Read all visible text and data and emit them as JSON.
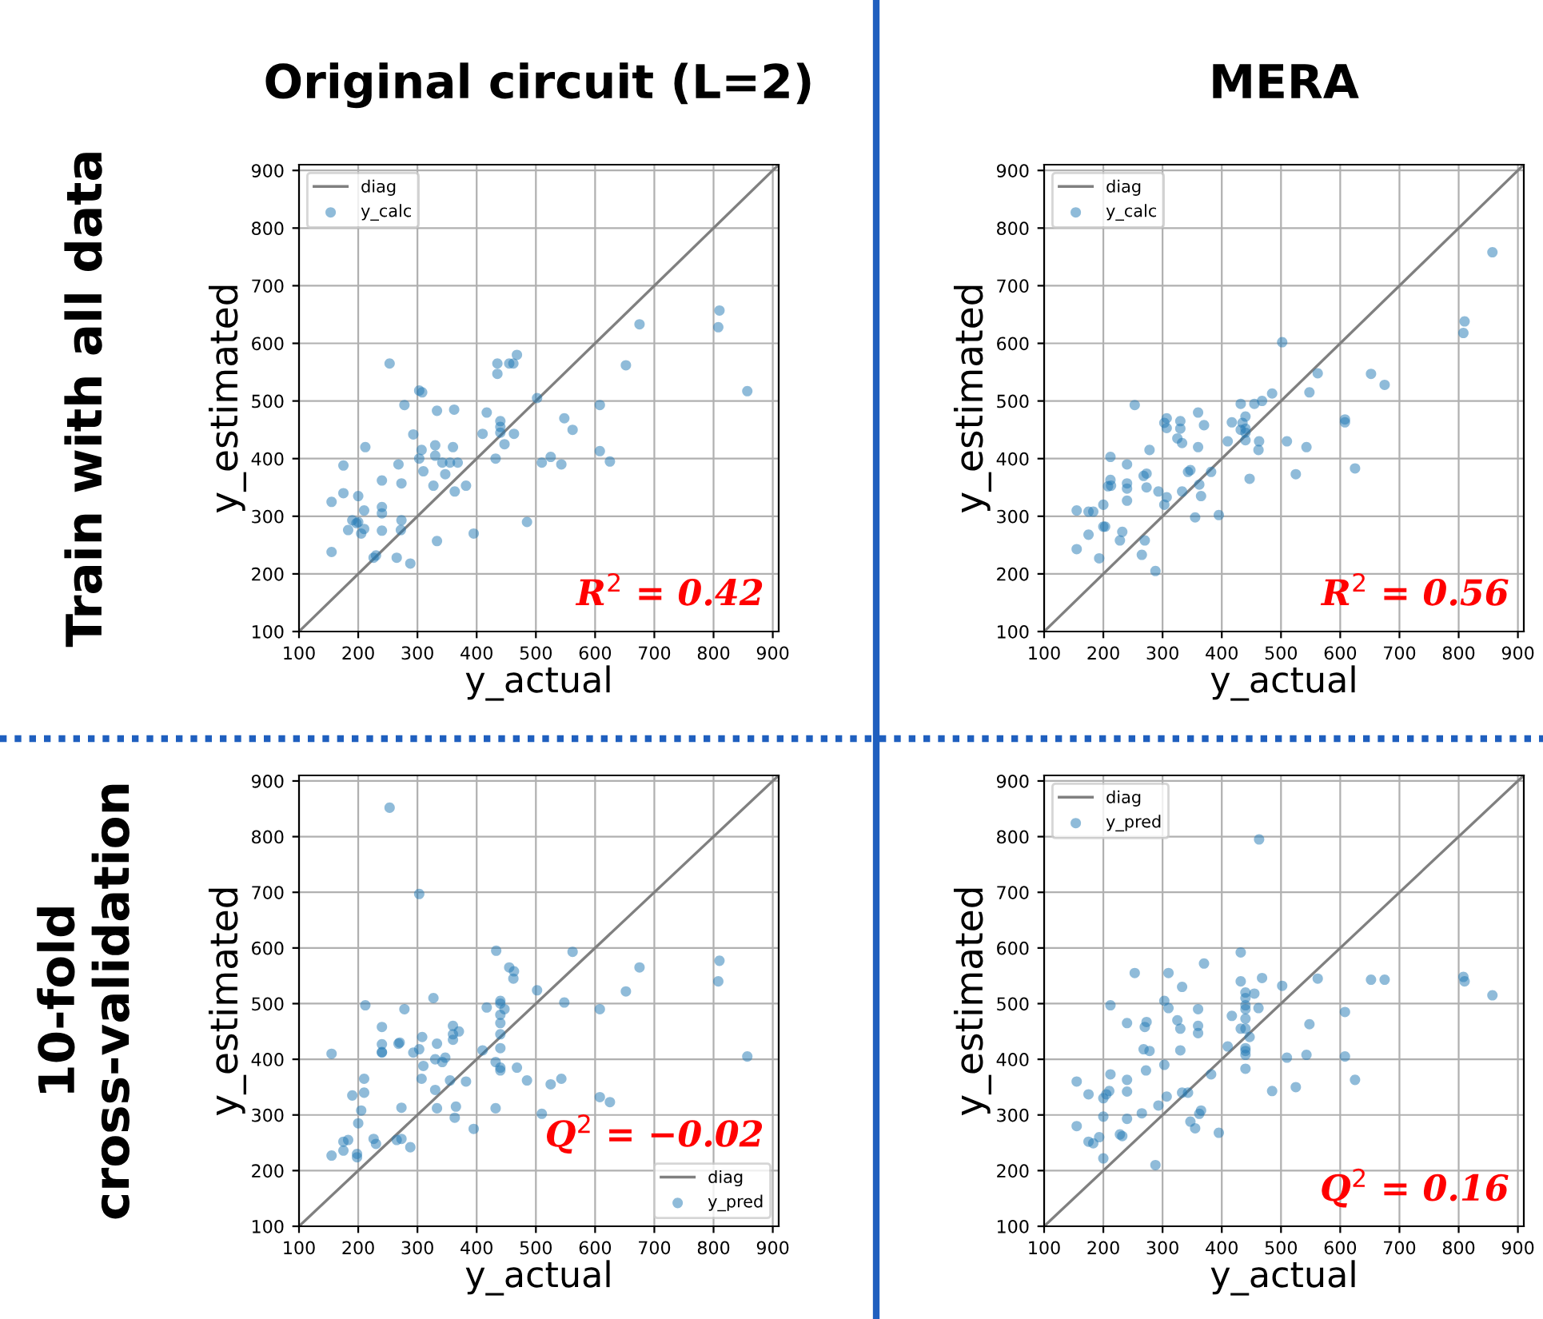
{
  "chart_data": [
    {
      "type": "scatter",
      "title": "Original circuit (L=2)",
      "xlabel": "y_actual",
      "ylabel": "y_estimated",
      "xlim": [
        100,
        910
      ],
      "ylim": [
        100,
        910
      ],
      "xticks": [
        100,
        200,
        300,
        400,
        500,
        600,
        700,
        800,
        900
      ],
      "yticks": [
        100,
        200,
        300,
        400,
        500,
        600,
        700,
        800,
        900
      ],
      "grid": true,
      "legend": "top left",
      "annotations": [
        "R$^{2}$ = 0.42",
        "Train with all data"
      ],
      "series": [
        {
          "name": "diag",
          "type": "line",
          "color": "#808080",
          "x": [
            100,
            910
          ],
          "values": [
            100,
            910
          ]
        },
        {
          "name": "y_calc",
          "marker": "circle",
          "color": "#1f77b4",
          "x": [
            155,
            155,
            175,
            175,
            183,
            190,
            197,
            200,
            200,
            205,
            210,
            210,
            212,
            226,
            230,
            240,
            240,
            240,
            240,
            265,
            268,
            272,
            273,
            273,
            253,
            278,
            288,
            293,
            303,
            303,
            308,
            307,
            310,
            327,
            330,
            330,
            333,
            333,
            342,
            347,
            355,
            360,
            362,
            363,
            368,
            382,
            395,
            410,
            417,
            432,
            435,
            435,
            440,
            440,
            440,
            447,
            455,
            462,
            463,
            468,
            485,
            502,
            510,
            525,
            543,
            548,
            562,
            608,
            608,
            625,
            652,
            675,
            808,
            810,
            857
          ],
          "values": [
            325,
            238,
            388,
            340,
            276,
            293,
            288,
            290,
            335,
            270,
            310,
            278,
            420,
            228,
            232,
            316,
            305,
            275,
            362,
            228,
            390,
            276,
            293,
            357,
            565,
            493,
            218,
            442,
            400,
            518,
            515,
            415,
            378,
            353,
            423,
            405,
            483,
            257,
            393,
            373,
            393,
            420,
            485,
            343,
            393,
            353,
            270,
            443,
            480,
            400,
            565,
            547,
            465,
            455,
            445,
            425,
            565,
            565,
            443,
            580,
            290,
            505,
            393,
            403,
            390,
            470,
            450,
            493,
            413,
            395,
            562,
            633,
            628,
            657,
            517
          ]
        }
      ]
    },
    {
      "type": "scatter",
      "title": "MERA",
      "xlabel": "y_actual",
      "ylabel": "y_estimated",
      "xlim": [
        100,
        910
      ],
      "ylim": [
        100,
        910
      ],
      "xticks": [
        100,
        200,
        300,
        400,
        500,
        600,
        700,
        800,
        900
      ],
      "yticks": [
        100,
        200,
        300,
        400,
        500,
        600,
        700,
        800,
        900
      ],
      "grid": true,
      "legend": "top left",
      "annotations": [
        "R$^{2}$ = 0.56"
      ],
      "series": [
        {
          "name": "diag",
          "type": "line",
          "color": "#808080",
          "x": [
            100,
            910
          ],
          "values": [
            100,
            910
          ]
        },
        {
          "name": "y_calc",
          "marker": "circle",
          "color": "#1f77b4",
          "x": [
            155,
            155,
            175,
            175,
            183,
            193,
            200,
            200,
            203,
            208,
            212,
            212,
            213,
            228,
            232,
            240,
            240,
            240,
            240,
            265,
            268,
            270,
            273,
            273,
            253,
            278,
            288,
            293,
            303,
            303,
            307,
            307,
            307,
            325,
            330,
            330,
            333,
            333,
            343,
            347,
            355,
            360,
            360,
            362,
            365,
            370,
            382,
            395,
            410,
            417,
            432,
            432,
            435,
            440,
            440,
            440,
            440,
            447,
            455,
            462,
            463,
            468,
            485,
            502,
            510,
            525,
            543,
            548,
            562,
            608,
            608,
            625,
            652,
            675,
            808,
            810,
            857
          ],
          "values": [
            310,
            243,
            268,
            308,
            308,
            227,
            282,
            320,
            282,
            352,
            363,
            403,
            353,
            258,
            273,
            390,
            357,
            348,
            327,
            233,
            370,
            258,
            350,
            374,
            493,
            415,
            205,
            343,
            462,
            320,
            470,
            453,
            333,
            435,
            465,
            452,
            427,
            343,
            377,
            380,
            298,
            480,
            420,
            355,
            335,
            458,
            377,
            302,
            430,
            463,
            495,
            450,
            462,
            473,
            445,
            452,
            432,
            365,
            495,
            415,
            430,
            500,
            513,
            602,
            430,
            373,
            420,
            515,
            548,
            468,
            463,
            383,
            547,
            528,
            618,
            638,
            758
          ]
        }
      ]
    },
    {
      "type": "scatter",
      "xlabel": "y_actual",
      "ylabel": "y_estimated",
      "xlim": [
        100,
        910
      ],
      "ylim": [
        100,
        910
      ],
      "xticks": [
        100,
        200,
        300,
        400,
        500,
        600,
        700,
        800,
        900
      ],
      "yticks": [
        100,
        200,
        300,
        400,
        500,
        600,
        700,
        800,
        900
      ],
      "grid": true,
      "legend": "bottom right",
      "annotations": [
        "Q$^{2}$ = −0.02",
        "10-fold\ncross-validation"
      ],
      "series": [
        {
          "name": "diag",
          "type": "line",
          "color": "#808080",
          "x": [
            100,
            910
          ],
          "values": [
            100,
            910
          ]
        },
        {
          "name": "y_pred",
          "marker": "circle",
          "color": "#1f77b4",
          "x": [
            155,
            155,
            175,
            175,
            183,
            190,
            198,
            198,
            200,
            205,
            210,
            210,
            212,
            226,
            230,
            240,
            240,
            240,
            240,
            265,
            268,
            270,
            273,
            273,
            253,
            278,
            288,
            293,
            303,
            303,
            307,
            308,
            310,
            327,
            330,
            330,
            333,
            333,
            342,
            347,
            355,
            360,
            360,
            360,
            363,
            365,
            370,
            382,
            395,
            410,
            417,
            432,
            432,
            433,
            440,
            440,
            440,
            440,
            440,
            440,
            440,
            440,
            447,
            455,
            462,
            463,
            468,
            485,
            502,
            510,
            525,
            543,
            548,
            562,
            608,
            608,
            625,
            652,
            675,
            808,
            810,
            857
          ],
          "values": [
            410,
            227,
            252,
            236,
            255,
            335,
            230,
            224,
            285,
            308,
            340,
            365,
            497,
            257,
            248,
            458,
            427,
            412,
            413,
            255,
            428,
            430,
            257,
            313,
            852,
            490,
            242,
            412,
            697,
            418,
            365,
            440,
            388,
            510,
            400,
            345,
            428,
            312,
            395,
            403,
            362,
            445,
            460,
            435,
            295,
            315,
            450,
            360,
            275,
            416,
            493,
            312,
            395,
            595,
            505,
            500,
            480,
            465,
            445,
            420,
            385,
            380,
            490,
            565,
            545,
            558,
            385,
            362,
            524,
            302,
            355,
            365,
            502,
            593,
            490,
            332,
            323,
            522,
            565,
            540,
            577,
            405
          ]
        }
      ]
    },
    {
      "type": "scatter",
      "xlabel": "y_actual",
      "ylabel": "y_estimated",
      "xlim": [
        100,
        910
      ],
      "ylim": [
        100,
        910
      ],
      "xticks": [
        100,
        200,
        300,
        400,
        500,
        600,
        700,
        800,
        900
      ],
      "yticks": [
        100,
        200,
        300,
        400,
        500,
        600,
        700,
        800,
        900
      ],
      "grid": true,
      "legend": "top left",
      "annotations": [
        "Q$^{2}$ = 0.16"
      ],
      "series": [
        {
          "name": "diag",
          "type": "line",
          "color": "#808080",
          "x": [
            100,
            910
          ],
          "values": [
            100,
            910
          ]
        },
        {
          "name": "y_pred",
          "marker": "circle",
          "color": "#1f77b4",
          "x": [
            155,
            155,
            175,
            175,
            183,
            193,
            200,
            200,
            200,
            205,
            210,
            212,
            212,
            228,
            232,
            240,
            240,
            240,
            240,
            265,
            268,
            270,
            272,
            273,
            278,
            253,
            288,
            293,
            303,
            303,
            307,
            310,
            310,
            325,
            330,
            330,
            333,
            333,
            343,
            347,
            355,
            360,
            360,
            360,
            362,
            365,
            370,
            382,
            395,
            410,
            417,
            432,
            432,
            432,
            440,
            440,
            440,
            440,
            440,
            440,
            440,
            440,
            440,
            440,
            447,
            455,
            462,
            463,
            468,
            485,
            502,
            510,
            525,
            543,
            548,
            562,
            608,
            608,
            625,
            652,
            675,
            808,
            810,
            857
          ],
          "values": [
            360,
            280,
            337,
            252,
            249,
            260,
            222,
            297,
            330,
            337,
            343,
            373,
            497,
            265,
            262,
            465,
            363,
            342,
            293,
            303,
            418,
            458,
            380,
            467,
            415,
            555,
            210,
            317,
            505,
            390,
            333,
            555,
            492,
            470,
            455,
            416,
            530,
            340,
            340,
            288,
            276,
            490,
            460,
            447,
            302,
            308,
            572,
            373,
            268,
            423,
            478,
            592,
            540,
            455,
            520,
            510,
            497,
            490,
            473,
            455,
            420,
            415,
            408,
            383,
            440,
            518,
            492,
            795,
            546,
            343,
            532,
            403,
            350,
            408,
            463,
            545,
            485,
            405,
            363,
            543,
            543,
            548,
            540,
            515
          ]
        }
      ]
    }
  ]
}
